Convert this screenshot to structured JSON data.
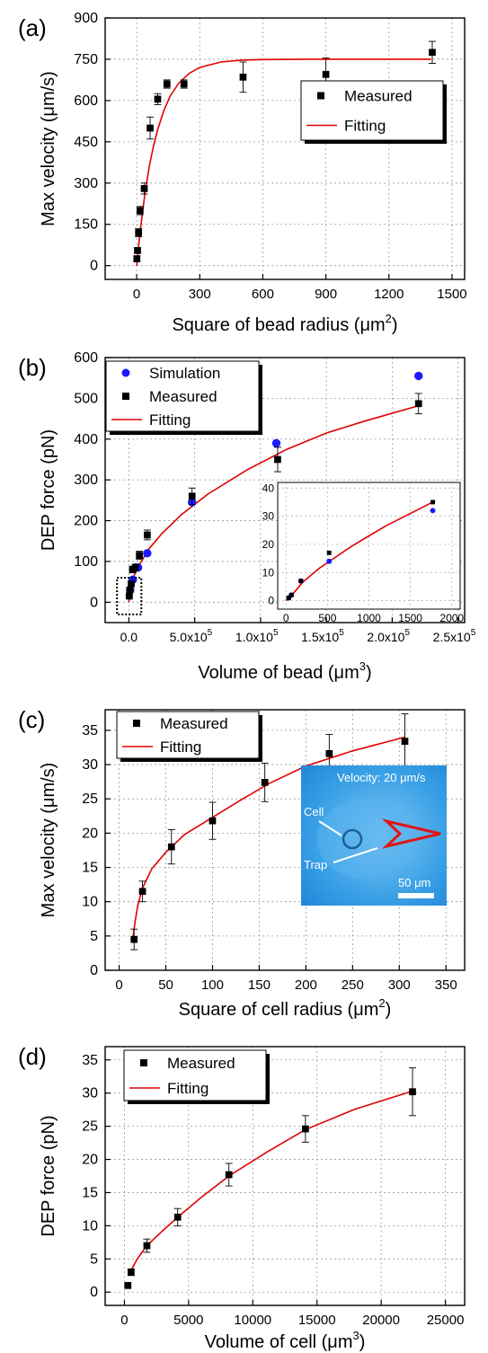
{
  "panels": [
    {
      "panel_label": "(a)",
      "xlabel": "Square of bead radius (μm",
      "xlabel_sup": "2",
      "xlabel_close": ")",
      "ylabel": "Max velocity (μm/s)",
      "xticks": [
        {
          "v": 0,
          "label": "0"
        },
        {
          "v": 300,
          "label": "300"
        },
        {
          "v": 600,
          "label": "600"
        },
        {
          "v": 900,
          "label": "900"
        },
        {
          "v": 1200,
          "label": "1200"
        },
        {
          "v": 1500,
          "label": "1500"
        }
      ],
      "yticks": [
        {
          "v": 0,
          "label": "0"
        },
        {
          "v": 150,
          "label": "150"
        },
        {
          "v": 300,
          "label": "300"
        },
        {
          "v": 450,
          "label": "450"
        },
        {
          "v": 600,
          "label": "600"
        },
        {
          "v": 750,
          "label": "750"
        },
        {
          "v": 900,
          "label": "900"
        }
      ],
      "legend": {
        "measured": "Measured",
        "fitting": "Fitting"
      }
    },
    {
      "panel_label": "(b)",
      "xlabel": "Volume of bead (μm",
      "xlabel_sup": "3",
      "xlabel_close": ")",
      "ylabel": "DEP force (pN)",
      "xticks": [
        {
          "v": 0,
          "label": "0.0"
        },
        {
          "v": 50000,
          "label": "5.0x10"
        },
        {
          "v": 100000,
          "label": "1.0x10"
        },
        {
          "v": 150000,
          "label": "1.5x10"
        },
        {
          "v": 200000,
          "label": "2.0x10"
        },
        {
          "v": 250000,
          "label": "2.5x10"
        }
      ],
      "xtick_sup": "5",
      "yticks": [
        {
          "v": 0,
          "label": "0"
        },
        {
          "v": 100,
          "label": "100"
        },
        {
          "v": 200,
          "label": "200"
        },
        {
          "v": 300,
          "label": "300"
        },
        {
          "v": 400,
          "label": "400"
        },
        {
          "v": 500,
          "label": "500"
        },
        {
          "v": 600,
          "label": "600"
        }
      ],
      "legend": {
        "simulation": "Simulation",
        "measured": "Measured",
        "fitting": "Fitting"
      },
      "inset": {
        "xticks": [
          {
            "v": 0,
            "label": "0"
          },
          {
            "v": 500,
            "label": "500"
          },
          {
            "v": 1000,
            "label": "1000"
          },
          {
            "v": 1500,
            "label": "1500"
          },
          {
            "v": 2000,
            "label": "2000"
          }
        ],
        "yticks": [
          {
            "v": 0,
            "label": "0"
          },
          {
            "v": 10,
            "label": "10"
          },
          {
            "v": 20,
            "label": "20"
          },
          {
            "v": 30,
            "label": "30"
          },
          {
            "v": 40,
            "label": "40"
          }
        ]
      }
    },
    {
      "panel_label": "(c)",
      "xlabel": "Square of cell radius (μm",
      "xlabel_sup": "2",
      "xlabel_close": ")",
      "ylabel": "Max velocity (μm/s)",
      "xticks": [
        {
          "v": 0,
          "label": "0"
        },
        {
          "v": 50,
          "label": "50"
        },
        {
          "v": 100,
          "label": "100"
        },
        {
          "v": 150,
          "label": "150"
        },
        {
          "v": 200,
          "label": "200"
        },
        {
          "v": 250,
          "label": "250"
        },
        {
          "v": 300,
          "label": "300"
        },
        {
          "v": 350,
          "label": "350"
        }
      ],
      "yticks": [
        {
          "v": 0,
          "label": "0"
        },
        {
          "v": 5,
          "label": "5"
        },
        {
          "v": 10,
          "label": "10"
        },
        {
          "v": 15,
          "label": "15"
        },
        {
          "v": 20,
          "label": "20"
        },
        {
          "v": 25,
          "label": "25"
        },
        {
          "v": 30,
          "label": "30"
        },
        {
          "v": 35,
          "label": "35"
        }
      ],
      "legend": {
        "measured": "Measured",
        "fitting": "Fitting"
      },
      "micrograph": {
        "velocity": "Velocity: 20 μm/s",
        "cell": "Cell",
        "trap": "Trap",
        "scale": "50 μm"
      }
    },
    {
      "panel_label": "(d)",
      "xlabel": "Volume of cell (μm",
      "xlabel_sup": "3",
      "xlabel_close": ")",
      "ylabel": "DEP force (pN)",
      "xticks": [
        {
          "v": 0,
          "label": "0"
        },
        {
          "v": 5000,
          "label": "5000"
        },
        {
          "v": 10000,
          "label": "10000"
        },
        {
          "v": 15000,
          "label": "15000"
        },
        {
          "v": 20000,
          "label": "20000"
        },
        {
          "v": 25000,
          "label": "25000"
        }
      ],
      "yticks": [
        {
          "v": 0,
          "label": "0"
        },
        {
          "v": 5,
          "label": "5"
        },
        {
          "v": 10,
          "label": "10"
        },
        {
          "v": 15,
          "label": "15"
        },
        {
          "v": 20,
          "label": "20"
        },
        {
          "v": 25,
          "label": "25"
        },
        {
          "v": 30,
          "label": "30"
        },
        {
          "v": 35,
          "label": "35"
        }
      ],
      "legend": {
        "measured": "Measured",
        "fitting": "Fitting"
      }
    }
  ],
  "chart_data": [
    {
      "type": "scatter",
      "xlim": [
        -150,
        1560
      ],
      "ylim": [
        -50,
        900
      ],
      "grid": true,
      "legend_position": "middle-right",
      "series": [
        {
          "name": "Measured",
          "color": "#000000",
          "marker": "square",
          "x": [
            1,
            4,
            9,
            16,
            36,
            64,
            100,
            144,
            225,
            506,
            900,
            1406
          ],
          "y": [
            25,
            55,
            120,
            200,
            280,
            500,
            605,
            660,
            660,
            685,
            695,
            775
          ],
          "err": [
            10,
            10,
            15,
            15,
            20,
            40,
            20,
            15,
            15,
            55,
            60,
            40
          ]
        },
        {
          "name": "Fitting",
          "color": "#e00000",
          "type": "line",
          "x": [
            0,
            10,
            20,
            40,
            60,
            80,
            100,
            130,
            160,
            200,
            250,
            300,
            400,
            500,
            600,
            800,
            1000,
            1200,
            1400
          ],
          "y": [
            0,
            78,
            148,
            265,
            360,
            435,
            495,
            565,
            617,
            663,
            699,
            720,
            740,
            747,
            749,
            750,
            750,
            750,
            750
          ]
        }
      ]
    },
    {
      "type": "scatter",
      "xlim": [
        -18000,
        255000
      ],
      "ylim": [
        -50,
        600
      ],
      "grid": true,
      "legend_position": "top-left",
      "series": [
        {
          "name": "Simulation",
          "color": "#1a1aff",
          "marker": "circle",
          "x": [
            1000,
            3000,
            5000,
            7000,
            14000,
            48000,
            112000,
            220000
          ],
          "y": [
            30,
            55,
            85,
            85,
            120,
            245,
            390,
            555
          ]
        },
        {
          "name": "Measured",
          "color": "#000000",
          "marker": "square",
          "x": [
            300,
            800,
            1800,
            2800,
            5000,
            8000,
            14000,
            48000,
            113000,
            220000
          ],
          "y": [
            15,
            30,
            45,
            80,
            85,
            115,
            165,
            260,
            350,
            487
          ],
          "err": [
            3,
            5,
            6,
            8,
            8,
            10,
            12,
            20,
            30,
            25
          ]
        },
        {
          "name": "Fitting",
          "color": "#e00000",
          "type": "line",
          "x": [
            0,
            500,
            1000,
            2000,
            4000,
            8000,
            15000,
            25000,
            40000,
            60000,
            90000,
            120000,
            150000,
            180000,
            220000
          ],
          "y": [
            0,
            25,
            35,
            48,
            65,
            92,
            130,
            168,
            215,
            265,
            325,
            375,
            415,
            445,
            482
          ]
        }
      ],
      "inset": {
        "xlim": [
          -100,
          2100
        ],
        "ylim": [
          -3,
          42
        ],
        "series": [
          {
            "name": "Simulation",
            "color": "#1a1aff",
            "marker": "circle",
            "x": [
              33,
              65,
              180,
              520,
              1770
            ],
            "y": [
              1,
              2,
              7,
              14,
              32
            ]
          },
          {
            "name": "Measured",
            "color": "#000000",
            "marker": "square",
            "x": [
              33,
              65,
              180,
              520,
              1770
            ],
            "y": [
              1,
              2,
              7,
              17,
              35
            ]
          },
          {
            "name": "Fitting",
            "color": "#e00000",
            "type": "line",
            "x": [
              0,
              50,
              100,
              200,
              400,
              600,
              800,
              1000,
              1200,
              1400,
              1600,
              1800
            ],
            "y": [
              0,
              1.5,
              3,
              6.5,
              11.5,
              15.5,
              19.5,
              23,
              26.5,
              29.5,
              32.5,
              35.5
            ]
          }
        ]
      }
    },
    {
      "type": "scatter",
      "xlim": [
        -15,
        370
      ],
      "ylim": [
        0,
        38
      ],
      "grid": true,
      "legend_position": "top-left",
      "series": [
        {
          "name": "Measured",
          "color": "#000000",
          "marker": "square",
          "x": [
            16,
            25,
            56,
            100,
            156,
            225,
            306
          ],
          "y": [
            4.5,
            11.5,
            18,
            21.8,
            27.4,
            31.6,
            33.4
          ],
          "err": [
            1.5,
            1.5,
            2.5,
            2.7,
            2.8,
            2.8,
            4.0
          ]
        },
        {
          "name": "Fitting",
          "color": "#e00000",
          "type": "line",
          "x": [
            14,
            17,
            20,
            25,
            35,
            50,
            70,
            100,
            130,
            160,
            200,
            250,
            306
          ],
          "y": [
            4.0,
            7.0,
            9.5,
            12.0,
            14.8,
            17.2,
            19.8,
            22.3,
            24.8,
            27.2,
            29.8,
            32.0,
            34.0
          ]
        }
      ]
    },
    {
      "type": "scatter",
      "xlim": [
        -1500,
        26500
      ],
      "ylim": [
        -2,
        37
      ],
      "grid": true,
      "legend_position": "top-left",
      "series": [
        {
          "name": "Measured",
          "color": "#000000",
          "marker": "square",
          "x": [
            270,
            520,
            1750,
            4150,
            8140,
            14100,
            22440
          ],
          "y": [
            1,
            3,
            7,
            11.3,
            17.7,
            24.6,
            30.2
          ],
          "err": [
            0.3,
            0.5,
            1.0,
            1.3,
            1.7,
            2.0,
            3.6
          ]
        },
        {
          "name": "Fitting",
          "color": "#e00000",
          "type": "line",
          "x": [
            300,
            500,
            1000,
            1750,
            3000,
            4150,
            6000,
            8140,
            11000,
            14100,
            18000,
            22440
          ],
          "y": [
            2.5,
            3.2,
            5.0,
            7.0,
            9.3,
            11.3,
            14.3,
            17.5,
            21.0,
            24.5,
            27.6,
            30.3
          ]
        }
      ]
    }
  ]
}
